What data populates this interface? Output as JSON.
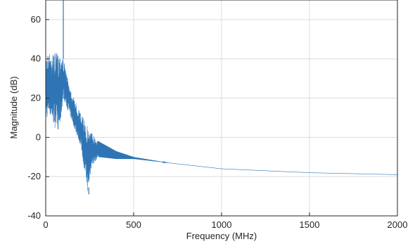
{
  "chart_data": {
    "type": "line",
    "title": "",
    "xlabel": "Frequency (MHz)",
    "ylabel": "Magnitude (dB)",
    "xlim": [
      0,
      2000
    ],
    "ylim": [
      -40,
      70
    ],
    "xticks": [
      0,
      500,
      1000,
      1500,
      2000
    ],
    "yticks": [
      -40,
      -20,
      0,
      20,
      40,
      60
    ],
    "xtick_labels": [
      "0",
      "500",
      "1000",
      "1500",
      "2000"
    ],
    "ytick_labels": [
      "-40",
      "-20",
      "0",
      "20",
      "40",
      "60"
    ],
    "grid": true,
    "color": "#2f75b5",
    "series": [
      {
        "envelope_upper": [
          [
            0,
            43
          ],
          [
            40,
            43
          ],
          [
            90,
            43
          ],
          [
            100,
            40
          ],
          [
            120,
            32
          ],
          [
            150,
            22
          ],
          [
            200,
            12
          ],
          [
            250,
            4
          ],
          [
            300,
            -2
          ],
          [
            400,
            -7
          ],
          [
            500,
            -10
          ],
          [
            700,
            -13
          ],
          [
            1000,
            -16
          ],
          [
            1500,
            -18
          ],
          [
            2000,
            -19
          ]
        ],
        "envelope_lower": [
          [
            0,
            8
          ],
          [
            20,
            12
          ],
          [
            50,
            5
          ],
          [
            80,
            3
          ],
          [
            100,
            20
          ],
          [
            120,
            15
          ],
          [
            150,
            8
          ],
          [
            200,
            -5
          ],
          [
            240,
            -29
          ],
          [
            260,
            -15
          ],
          [
            300,
            -10
          ],
          [
            400,
            -11
          ],
          [
            500,
            -11
          ],
          [
            700,
            -13
          ],
          [
            1000,
            -16
          ],
          [
            1500,
            -18
          ],
          [
            2000,
            -19
          ]
        ],
        "peaks": [
          [
            100,
            76
          ],
          [
            245,
            -29
          ]
        ]
      }
    ]
  }
}
